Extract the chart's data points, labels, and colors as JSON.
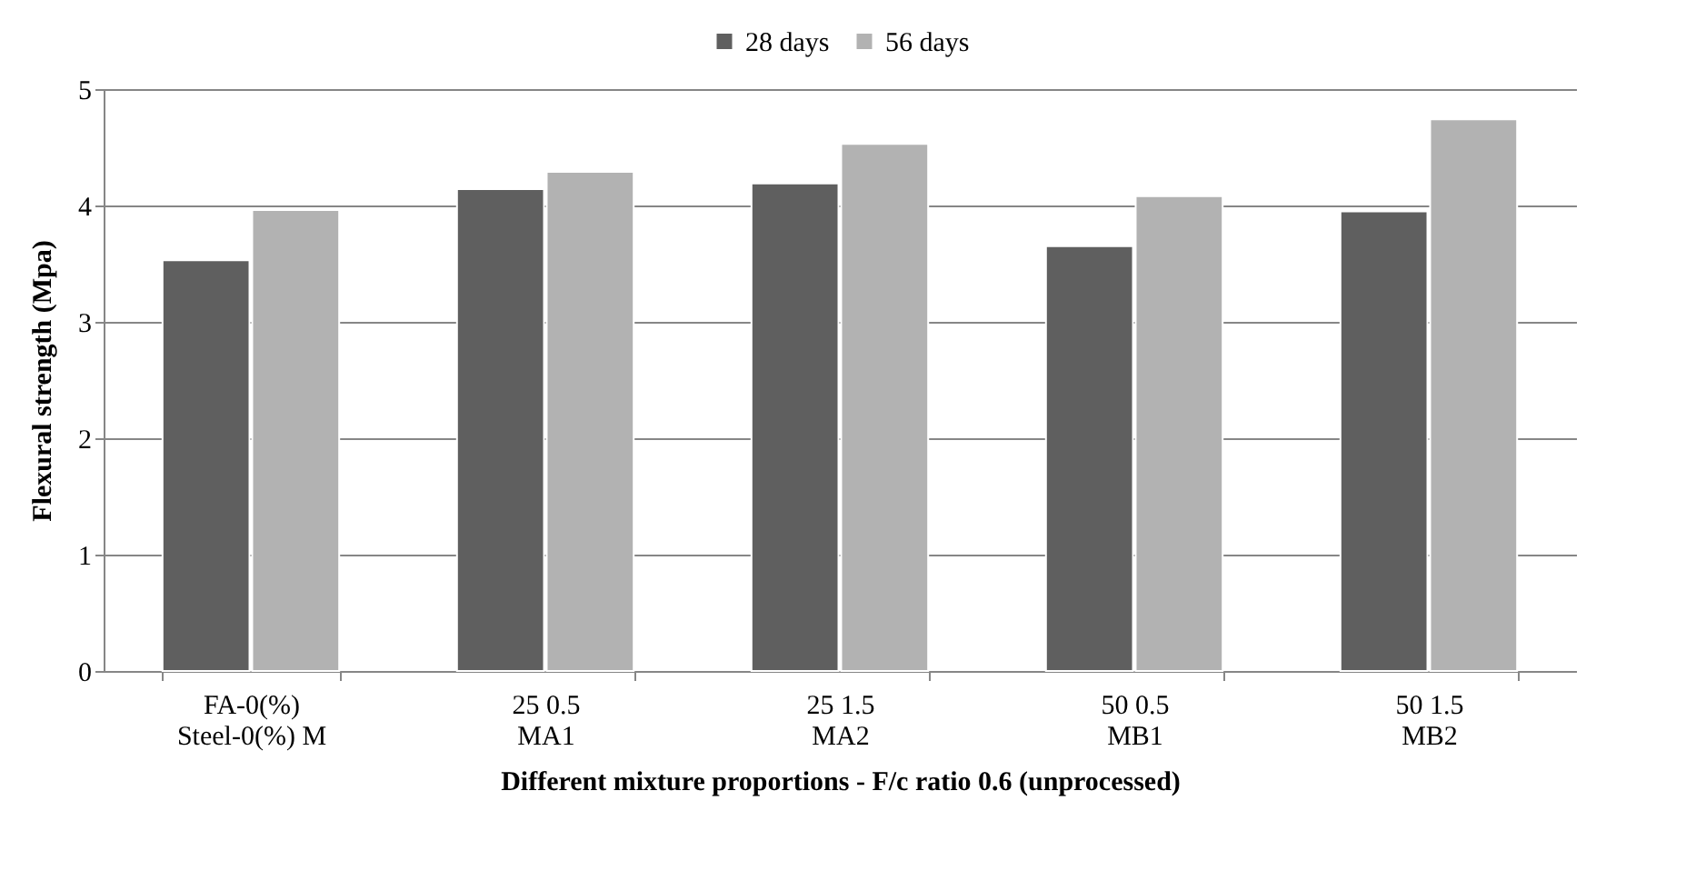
{
  "chart_data": {
    "type": "bar",
    "xlabel": "Different mixture proportions - F/c ratio 0.6 (unprocessed)",
    "ylabel": "Flexural strength (Mpa)",
    "categories": [
      "FA-0(%)\nSteel-0(%) M",
      "25 0.5\nMA1",
      "25 1.5\nMA2",
      "50 0.5\nMB1",
      "50 1.5\nMB2"
    ],
    "series": [
      {
        "name": "28 days",
        "color": "#5f5f5f",
        "values": [
          3.53,
          4.14,
          4.19,
          3.65,
          3.95
        ]
      },
      {
        "name": "56 days",
        "color": "#b2b2b2",
        "values": [
          3.96,
          4.29,
          4.53,
          4.08,
          4.74
        ]
      }
    ],
    "ylim": [
      0,
      5
    ],
    "yticks": [
      0,
      1,
      2,
      3,
      4,
      5
    ],
    "grid": "y",
    "legend": "top"
  }
}
